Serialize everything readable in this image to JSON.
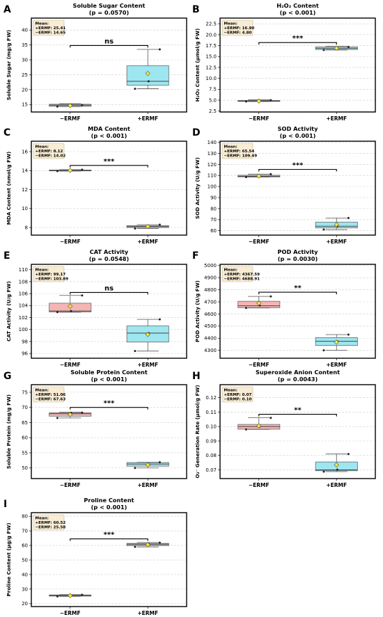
{
  "figure": {
    "neg_label": "−ERMF",
    "pos_label": "+ERMF",
    "mean_header": "Mean:"
  },
  "chart_data": [
    {
      "panel": "A",
      "type": "box",
      "title": "Soluble Sugar Content",
      "subtitle": "(p = 0.0570)",
      "ylabel": "Soluble Sugar (mg/g FW)",
      "ylim": [
        12.5,
        44
      ],
      "yticks": [
        15,
        20,
        25,
        30,
        35,
        40
      ],
      "tick_labels": [
        "15",
        "20",
        "25",
        "30",
        "35",
        "40"
      ],
      "categories": [
        "−ERMF",
        "+ERMF"
      ],
      "boxes": [
        {
          "whislo": 14.3,
          "q1": 14.4,
          "med": 14.8,
          "q3": 15.1,
          "whishi": 15.3,
          "mean": 14.65,
          "points": [
            14.3,
            14.9,
            14.8
          ],
          "color": "#bdbdbd"
        },
        {
          "whislo": 20.3,
          "q1": 21.5,
          "med": 22.8,
          "q3": 28.0,
          "whishi": 33.5,
          "mean": 25.41,
          "points": [
            20.3,
            22.8,
            33.5
          ],
          "color": "#9ee6f0"
        }
      ],
      "mean_lines": [
        "+ERMF: 25.41",
        "−ERMF: 14.65"
      ],
      "sig": "ns",
      "sig_y": 34.8
    },
    {
      "panel": "B",
      "type": "box",
      "title": "H₂O₂ Content",
      "subtitle": "(p < 0.001)",
      "ylabel": "H₂O₂ Content (μmol/g FW)",
      "ylim": [
        2.3,
        23.8
      ],
      "yticks": [
        2.5,
        5.0,
        7.5,
        10.0,
        12.5,
        15.0,
        17.5,
        20.0,
        22.5
      ],
      "tick_labels": [
        "2.5",
        "5.0",
        "7.5",
        "10.0",
        "12.5",
        "15.0",
        "17.5",
        "20.0",
        "22.5"
      ],
      "categories": [
        "−ERMF",
        "+ERMF"
      ],
      "boxes": [
        {
          "whislo": 4.7,
          "q1": 4.72,
          "med": 4.8,
          "q3": 4.95,
          "whishi": 5.1,
          "mean": 4.8,
          "points": [
            4.7,
            4.8,
            5.0
          ],
          "color": "#bdbdbd"
        },
        {
          "whislo": 16.5,
          "q1": 16.6,
          "med": 16.9,
          "q3": 17.2,
          "whishi": 17.3,
          "mean": 16.9,
          "points": [
            16.5,
            17.0,
            17.2
          ],
          "color": "#9ee6f0"
        }
      ],
      "mean_lines": [
        "+ERMF: 16.90",
        "−ERMF: 4.80"
      ],
      "sig": "***",
      "sig_y": 18.2
    },
    {
      "panel": "C",
      "type": "box",
      "title": "MDA Content",
      "subtitle": "(p < 0.001)",
      "ylabel": "MDA Content (nmol/g FW)",
      "ylim": [
        7.2,
        17.1
      ],
      "yticks": [
        8,
        10,
        12,
        14,
        16
      ],
      "tick_labels": [
        "8",
        "10",
        "12",
        "14",
        "16"
      ],
      "categories": [
        "−ERMF",
        "+ERMF"
      ],
      "boxes": [
        {
          "whislo": 13.95,
          "q1": 13.97,
          "med": 14.02,
          "q3": 14.06,
          "whishi": 14.1,
          "mean": 14.02,
          "points": [
            13.95,
            14.05,
            14.1
          ],
          "color": "#bdbdbd"
        },
        {
          "whislo": 7.9,
          "q1": 8.0,
          "med": 8.1,
          "q3": 8.2,
          "whishi": 8.3,
          "mean": 8.12,
          "points": [
            7.9,
            8.1,
            8.3
          ],
          "color": "#bdbdbd"
        }
      ],
      "mean_lines": [
        "+ERMF: 8.12",
        "−ERMF: 14.02"
      ],
      "sig": "***",
      "sig_y": 14.55
    },
    {
      "panel": "D",
      "type": "box",
      "title": "SOD Activity",
      "subtitle": "(p < 0.001)",
      "ylabel": "SOD Activity (U/g FW)",
      "ylim": [
        56,
        141
      ],
      "yticks": [
        60,
        70,
        80,
        90,
        100,
        110,
        120,
        130,
        140
      ],
      "tick_labels": [
        "60",
        "70",
        "80",
        "90",
        "100",
        "110",
        "120",
        "130",
        "140"
      ],
      "categories": [
        "−ERMF",
        "+ERMF"
      ],
      "boxes": [
        {
          "whislo": 108.5,
          "q1": 108.7,
          "med": 109.3,
          "q3": 110.2,
          "whishi": 111.2,
          "mean": 109.49,
          "points": [
            108.5,
            109.5,
            111.2
          ],
          "color": "#f5b5b5"
        },
        {
          "whislo": 61.0,
          "q1": 62.5,
          "med": 64.0,
          "q3": 67.8,
          "whishi": 71.5,
          "mean": 65.54,
          "points": [
            61.0,
            64.0,
            71.5
          ],
          "color": "#9ee6f0"
        }
      ],
      "mean_lines": [
        "+ERMF: 65.54",
        "−ERMF: 109.49"
      ],
      "sig": "***",
      "sig_y": 115.5
    },
    {
      "panel": "E",
      "type": "box",
      "title": "CAT Activity",
      "subtitle": "(p = 0.0548)",
      "ylabel": "CAT Activity (U/g FW)",
      "ylim": [
        95.2,
        110.9
      ],
      "yticks": [
        96,
        98,
        100,
        102,
        104,
        106,
        108,
        110
      ],
      "tick_labels": [
        "96",
        "98",
        "100",
        "102",
        "104",
        "106",
        "108",
        "110"
      ],
      "categories": [
        "−ERMF",
        "+ERMF"
      ],
      "boxes": [
        {
          "whislo": 102.9,
          "q1": 102.95,
          "med": 103.1,
          "q3": 104.4,
          "whishi": 105.7,
          "mean": 103.89,
          "points": [
            102.9,
            103.1,
            105.7
          ],
          "color": "#f5b5b5"
        },
        {
          "whislo": 96.4,
          "q1": 97.9,
          "med": 99.4,
          "q3": 100.6,
          "whishi": 101.7,
          "mean": 99.17,
          "points": [
            96.4,
            99.4,
            101.7
          ],
          "color": "#9ee6f0"
        }
      ],
      "mean_lines": [
        "+ERMF: 99.17",
        "−ERMF: 103.89"
      ],
      "sig": "ns",
      "sig_y": 106.2
    },
    {
      "panel": "F",
      "type": "box",
      "title": "POD Activity",
      "subtitle": "(p = 0.0030)",
      "ylabel": "POD Activity (U/g FW)",
      "ylim": [
        4235,
        5010
      ],
      "yticks": [
        4300,
        4400,
        4500,
        4600,
        4700,
        4800,
        4900,
        5000
      ],
      "tick_labels": [
        "4300",
        "4400",
        "4500",
        "4600",
        "4700",
        "4800",
        "4900",
        "5000"
      ],
      "categories": [
        "−ERMF",
        "+ERMF"
      ],
      "boxes": [
        {
          "whislo": 4650,
          "q1": 4652,
          "med": 4668,
          "q3": 4705,
          "whishi": 4745,
          "mean": 4688.91,
          "points": [
            4650,
            4670,
            4745
          ],
          "color": "#f5b5b5"
        },
        {
          "whislo": 4300,
          "q1": 4340,
          "med": 4375,
          "q3": 4405,
          "whishi": 4430,
          "mean": 4367.59,
          "points": [
            4300,
            4375,
            4430
          ],
          "color": "#9ee6f0"
        }
      ],
      "mean_lines": [
        "+ERMF: 4367.59",
        "−ERMF: 4688.91"
      ],
      "sig": "**",
      "sig_y": 4780
    },
    {
      "panel": "G",
      "type": "box",
      "title": "Soluble Protein Content",
      "subtitle": "(p < 0.001)",
      "ylabel": "Soluble Protein (mg/g FW)",
      "ylim": [
        46.5,
        77.5
      ],
      "yticks": [
        50,
        55,
        60,
        65,
        70,
        75
      ],
      "tick_labels": [
        "50",
        "55",
        "60",
        "65",
        "70",
        "75"
      ],
      "categories": [
        "−ERMF",
        "+ERMF"
      ],
      "boxes": [
        {
          "whislo": 66.5,
          "q1": 67.1,
          "med": 67.9,
          "q3": 68.2,
          "whishi": 68.4,
          "mean": 67.63,
          "points": [
            66.5,
            68.2,
            68.3
          ],
          "color": "#f5b5b5"
        },
        {
          "whislo": 50.0,
          "q1": 50.6,
          "med": 51.3,
          "q3": 51.8,
          "whishi": 51.9,
          "mean": 51.06,
          "points": [
            50.0,
            51.3,
            51.9
          ],
          "color": "#9ee6f0"
        }
      ],
      "mean_lines": [
        "+ERMF: 51.06",
        "−ERMF: 67.63"
      ],
      "sig": "***",
      "sig_y": 70.0
    },
    {
      "panel": "H",
      "type": "box",
      "title": "Superoxide Anion Content",
      "subtitle": "(p = 0.0043)",
      "ylabel": "O₂⁻ Generation Rate (μmol/g FW)",
      "ylim": [
        0.064,
        0.129
      ],
      "yticks": [
        0.07,
        0.08,
        0.09,
        0.1,
        0.11,
        0.12
      ],
      "tick_labels": [
        "0.07",
        "0.08",
        "0.09",
        "0.10",
        "0.11",
        "0.12"
      ],
      "categories": [
        "−ERMF",
        "+ERMF"
      ],
      "boxes": [
        {
          "whislo": 0.098,
          "q1": 0.0982,
          "med": 0.1,
          "q3": 0.1015,
          "whishi": 0.1062,
          "mean": 0.1005,
          "points": [
            0.098,
            0.1,
            0.106
          ],
          "color": "#f5b5b5"
        },
        {
          "whislo": 0.0688,
          "q1": 0.0694,
          "med": 0.07,
          "q3": 0.0755,
          "whishi": 0.081,
          "mean": 0.0735,
          "points": [
            0.0688,
            0.0702,
            0.081
          ],
          "color": "#9ee6f0"
        }
      ],
      "mean_lines": [
        "+ERMF: 0.07",
        "−ERMF: 0.10"
      ],
      "sig": "**",
      "sig_y": 0.1085
    },
    {
      "panel": "I",
      "type": "box",
      "title": "Proline Content",
      "subtitle": "(p < 0.001)",
      "ylabel": "Proline Content (μg/g FW)",
      "ylim": [
        18,
        82.5
      ],
      "yticks": [
        20,
        30,
        40,
        50,
        60,
        70,
        80
      ],
      "tick_labels": [
        "20",
        "30",
        "40",
        "50",
        "60",
        "70",
        "80"
      ],
      "categories": [
        "−ERMF",
        "+ERMF"
      ],
      "boxes": [
        {
          "whislo": 25.0,
          "q1": 25.2,
          "med": 25.6,
          "q3": 26.0,
          "whishi": 26.2,
          "mean": 25.58,
          "points": [
            25.0,
            25.7,
            26.1
          ],
          "color": "#bdbdbd"
        },
        {
          "whislo": 59.0,
          "q1": 59.8,
          "med": 60.8,
          "q3": 61.4,
          "whishi": 62.0,
          "mean": 60.52,
          "points": [
            59.0,
            61.2,
            61.9
          ],
          "color": "#bdbdbd"
        }
      ],
      "mean_lines": [
        "+ERMF: 60.52",
        "−ERMF: 25.58"
      ],
      "sig": "***",
      "sig_y": 64.5
    }
  ]
}
